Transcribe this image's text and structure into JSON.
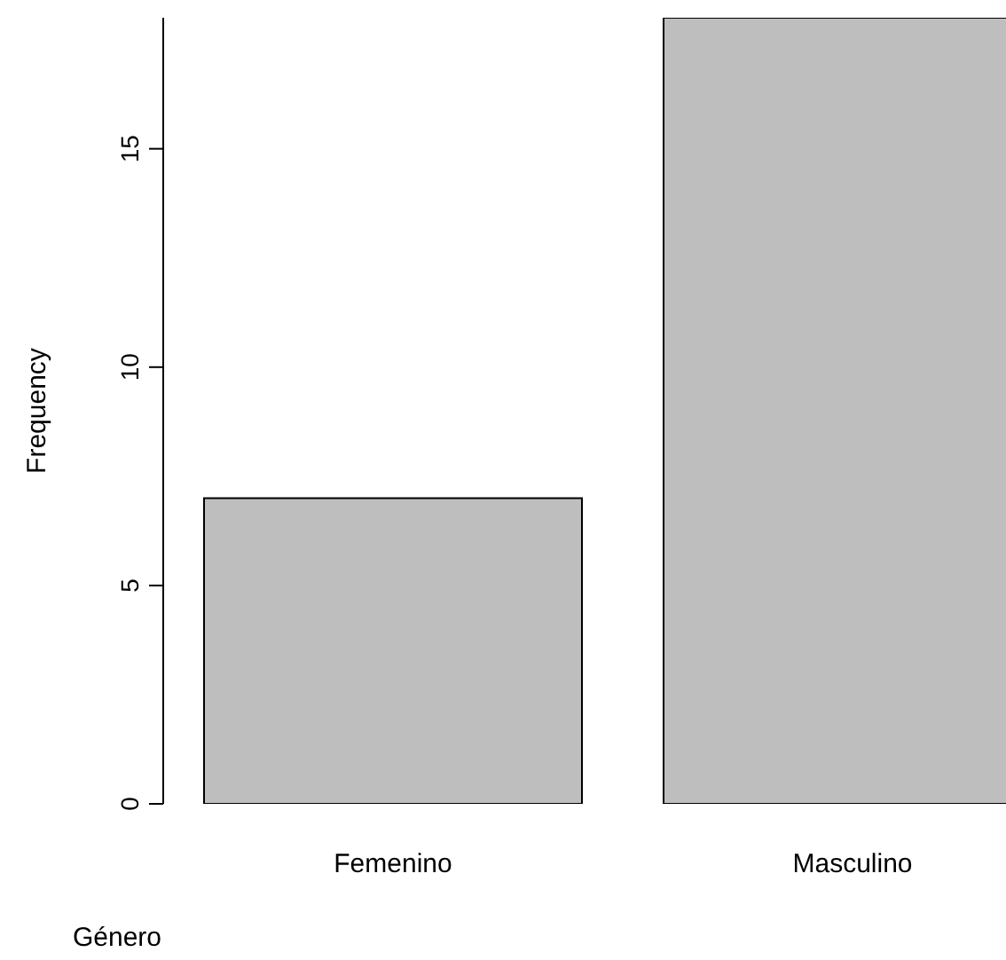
{
  "chart_data": {
    "type": "bar",
    "xlabel": "Género",
    "ylabel": "Frequency",
    "categories": [
      "Femenino",
      "Masculino"
    ],
    "values": [
      7,
      18
    ],
    "color": "#bebebe",
    "ylim": [
      0,
      18
    ],
    "yticks": [
      0,
      5,
      10,
      15
    ],
    "grid": false,
    "legend": false
  }
}
